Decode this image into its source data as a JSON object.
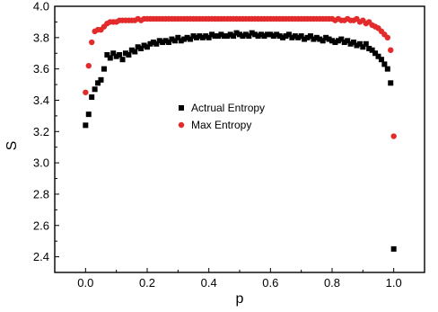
{
  "chart_data": {
    "type": "scatter",
    "xlabel": "p",
    "ylabel": "S",
    "xlim": [
      -0.1,
      1.1
    ],
    "ylim": [
      2.3,
      4.0
    ],
    "xticks": [
      0.0,
      0.2,
      0.4,
      0.6,
      0.8,
      1.0
    ],
    "xtick_labels": [
      "0.0",
      "0.2",
      "0.4",
      "0.6",
      "0.8",
      "1.0"
    ],
    "yticks": [
      2.4,
      2.6,
      2.8,
      3.0,
      3.2,
      3.4,
      3.6,
      3.8,
      4.0
    ],
    "ytick_labels": [
      "2.4",
      "2.6",
      "2.8",
      "3.0",
      "3.2",
      "3.4",
      "3.6",
      "3.8",
      "4.0"
    ],
    "legend_position": "center-left",
    "grid": false,
    "series": [
      {
        "name": "Actrual Entropy",
        "marker": "square",
        "color": "#000000",
        "x": [
          0.0,
          0.01,
          0.02,
          0.03,
          0.04,
          0.05,
          0.06,
          0.07,
          0.08,
          0.09,
          0.1,
          0.11,
          0.12,
          0.13,
          0.14,
          0.15,
          0.16,
          0.17,
          0.18,
          0.19,
          0.2,
          0.21,
          0.22,
          0.23,
          0.24,
          0.25,
          0.26,
          0.27,
          0.28,
          0.29,
          0.3,
          0.31,
          0.32,
          0.33,
          0.34,
          0.35,
          0.36,
          0.37,
          0.38,
          0.39,
          0.4,
          0.41,
          0.42,
          0.43,
          0.44,
          0.45,
          0.46,
          0.47,
          0.48,
          0.49,
          0.5,
          0.51,
          0.52,
          0.53,
          0.54,
          0.55,
          0.56,
          0.57,
          0.58,
          0.59,
          0.6,
          0.61,
          0.62,
          0.63,
          0.64,
          0.65,
          0.66,
          0.67,
          0.68,
          0.69,
          0.7,
          0.71,
          0.72,
          0.73,
          0.74,
          0.75,
          0.76,
          0.77,
          0.78,
          0.79,
          0.8,
          0.81,
          0.82,
          0.83,
          0.84,
          0.85,
          0.86,
          0.87,
          0.88,
          0.89,
          0.9,
          0.91,
          0.92,
          0.93,
          0.94,
          0.95,
          0.96,
          0.97,
          0.98,
          0.99,
          1.0
        ],
        "y": [
          3.24,
          3.31,
          3.42,
          3.47,
          3.51,
          3.53,
          3.6,
          3.69,
          3.67,
          3.7,
          3.68,
          3.69,
          3.66,
          3.7,
          3.69,
          3.72,
          3.71,
          3.74,
          3.73,
          3.75,
          3.74,
          3.76,
          3.77,
          3.76,
          3.78,
          3.77,
          3.78,
          3.77,
          3.79,
          3.78,
          3.8,
          3.78,
          3.79,
          3.8,
          3.79,
          3.81,
          3.8,
          3.81,
          3.8,
          3.81,
          3.8,
          3.82,
          3.81,
          3.81,
          3.82,
          3.81,
          3.81,
          3.82,
          3.81,
          3.83,
          3.82,
          3.81,
          3.82,
          3.81,
          3.83,
          3.82,
          3.81,
          3.82,
          3.81,
          3.82,
          3.82,
          3.81,
          3.82,
          3.81,
          3.8,
          3.81,
          3.82,
          3.8,
          3.81,
          3.8,
          3.81,
          3.79,
          3.8,
          3.81,
          3.79,
          3.8,
          3.79,
          3.78,
          3.8,
          3.79,
          3.78,
          3.77,
          3.78,
          3.79,
          3.77,
          3.78,
          3.76,
          3.77,
          3.75,
          3.76,
          3.74,
          3.76,
          3.73,
          3.72,
          3.7,
          3.68,
          3.66,
          3.63,
          3.6,
          3.51,
          2.45
        ]
      },
      {
        "name": "Max Entropy",
        "marker": "circle",
        "color": "#e32b2b",
        "x": [
          0.0,
          0.01,
          0.02,
          0.03,
          0.04,
          0.05,
          0.06,
          0.07,
          0.08,
          0.09,
          0.1,
          0.11,
          0.12,
          0.13,
          0.14,
          0.15,
          0.16,
          0.17,
          0.18,
          0.19,
          0.2,
          0.21,
          0.22,
          0.23,
          0.24,
          0.25,
          0.26,
          0.27,
          0.28,
          0.29,
          0.3,
          0.31,
          0.32,
          0.33,
          0.34,
          0.35,
          0.36,
          0.37,
          0.38,
          0.39,
          0.4,
          0.41,
          0.42,
          0.43,
          0.44,
          0.45,
          0.46,
          0.47,
          0.48,
          0.49,
          0.5,
          0.51,
          0.52,
          0.53,
          0.54,
          0.55,
          0.56,
          0.57,
          0.58,
          0.59,
          0.6,
          0.61,
          0.62,
          0.63,
          0.64,
          0.65,
          0.66,
          0.67,
          0.68,
          0.69,
          0.7,
          0.71,
          0.72,
          0.73,
          0.74,
          0.75,
          0.76,
          0.77,
          0.78,
          0.79,
          0.8,
          0.81,
          0.82,
          0.83,
          0.84,
          0.85,
          0.86,
          0.87,
          0.88,
          0.89,
          0.9,
          0.91,
          0.92,
          0.93,
          0.94,
          0.95,
          0.96,
          0.97,
          0.98,
          0.99,
          1.0
        ],
        "y": [
          3.45,
          3.62,
          3.77,
          3.84,
          3.85,
          3.85,
          3.87,
          3.89,
          3.9,
          3.9,
          3.9,
          3.91,
          3.91,
          3.91,
          3.91,
          3.91,
          3.91,
          3.92,
          3.91,
          3.92,
          3.92,
          3.92,
          3.92,
          3.92,
          3.92,
          3.92,
          3.92,
          3.92,
          3.92,
          3.92,
          3.92,
          3.92,
          3.92,
          3.92,
          3.92,
          3.92,
          3.92,
          3.92,
          3.92,
          3.92,
          3.92,
          3.92,
          3.92,
          3.92,
          3.92,
          3.92,
          3.92,
          3.92,
          3.92,
          3.92,
          3.92,
          3.92,
          3.92,
          3.92,
          3.92,
          3.92,
          3.92,
          3.92,
          3.92,
          3.92,
          3.92,
          3.92,
          3.92,
          3.92,
          3.92,
          3.92,
          3.92,
          3.92,
          3.92,
          3.92,
          3.92,
          3.92,
          3.92,
          3.92,
          3.92,
          3.92,
          3.92,
          3.92,
          3.92,
          3.92,
          3.92,
          3.91,
          3.92,
          3.91,
          3.91,
          3.92,
          3.91,
          3.91,
          3.92,
          3.9,
          3.91,
          3.89,
          3.9,
          3.88,
          3.87,
          3.86,
          3.84,
          3.82,
          3.8,
          3.72,
          3.17
        ]
      }
    ]
  }
}
